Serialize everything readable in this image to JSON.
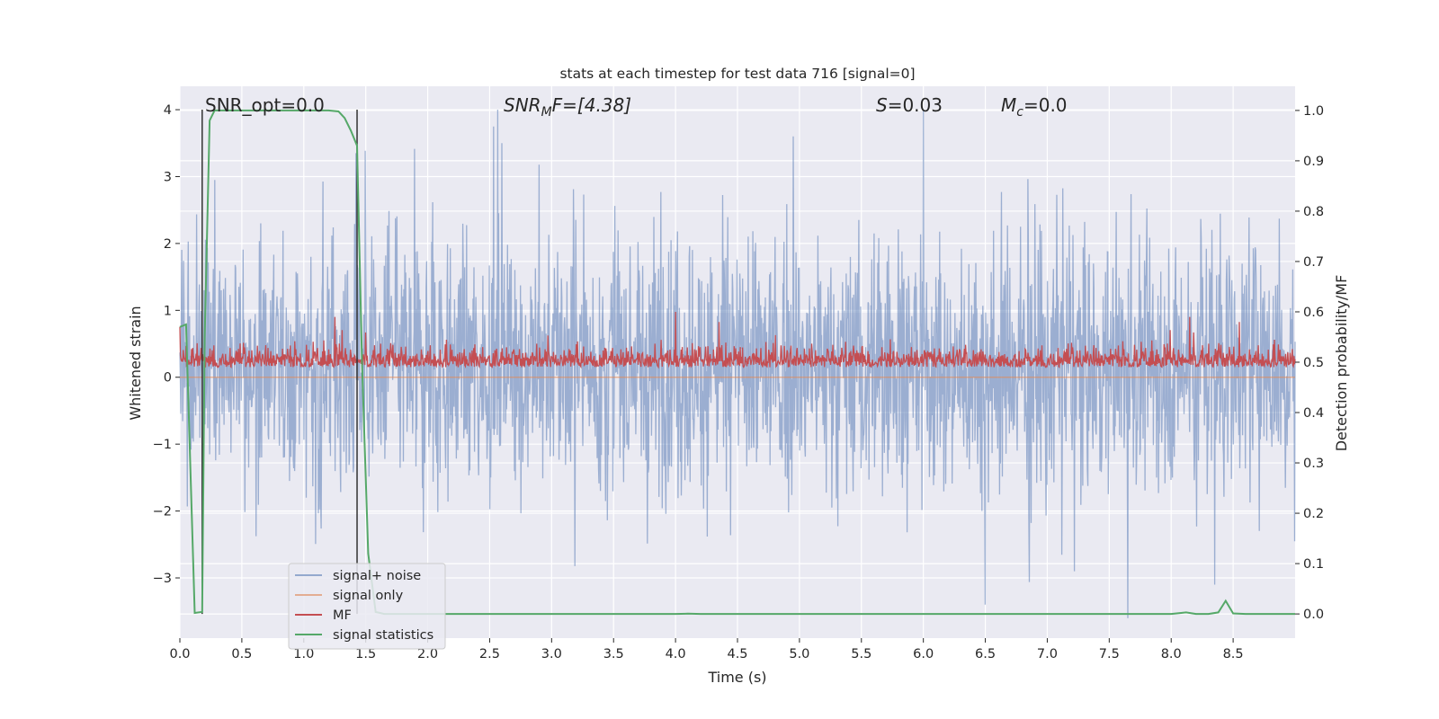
{
  "chart_data": {
    "type": "line",
    "title": "stats at each timestep for test data 716 [signal=0]",
    "xlabel": "Time (s)",
    "ylabel_left": "Whitened strain",
    "ylabel_right": "Detection probability/MF",
    "xlim": [
      0.0,
      9.0
    ],
    "ylim_left": [
      -3.9,
      4.35
    ],
    "ylim_right": [
      -0.048,
      1.048
    ],
    "x_ticks": [
      "0.0",
      "0.5",
      "1.0",
      "1.5",
      "2.0",
      "2.5",
      "3.0",
      "3.5",
      "4.0",
      "4.5",
      "5.0",
      "5.5",
      "6.0",
      "6.5",
      "7.0",
      "7.5",
      "8.0",
      "8.5"
    ],
    "y_left_ticks": [
      "−3",
      "−2",
      "−1",
      "0",
      "1",
      "2",
      "3",
      "4"
    ],
    "y_right_ticks": [
      "0.0",
      "0.1",
      "0.2",
      "0.3",
      "0.4",
      "0.5",
      "0.6",
      "0.7",
      "0.8",
      "0.9",
      "1.0"
    ],
    "grid": true,
    "legend_position": "lower-left",
    "annotations": {
      "snr_opt": "SNR_opt=0.0",
      "snr_mf_main": "SNR",
      "snr_mf_sub": "M",
      "snr_mf_rest": "F=[4.38]",
      "s_main": "S",
      "s_rest": "=0.03",
      "mc_main": "M",
      "mc_sub": "c",
      "mc_rest": "=0.0"
    },
    "vertical_markers": [
      0.18,
      1.43
    ],
    "series": [
      {
        "name": "signal+ noise",
        "axis": "left",
        "color": "#4c72b0",
        "x": [
          0.0,
          9.0
        ],
        "y_band_min": -3.6,
        "y_band_max": 4.0,
        "y_typical_range": [
          -1.3,
          1.7
        ],
        "note_values": {
          "peaks_high": [
            [
              4.95,
              3.6
            ],
            [
              6.0,
              4.0
            ],
            [
              1.42,
              3.35
            ]
          ],
          "peaks_low": [
            [
              7.65,
              -3.6
            ],
            [
              6.5,
              -3.4
            ],
            [
              8.35,
              -3.1
            ]
          ]
        }
      },
      {
        "name": "signal only",
        "axis": "left",
        "color": "#dd8452",
        "x": [
          0.0,
          9.0
        ],
        "y": [
          0.0,
          0.0
        ]
      },
      {
        "name": "MF",
        "axis": "right",
        "color": "#c44e52",
        "baseline": 0.49,
        "typical_range": [
          0.49,
          0.56
        ],
        "peaks": [
          [
            0.0,
            0.57
          ],
          [
            1.25,
            0.59
          ],
          [
            4.0,
            0.6
          ],
          [
            4.35,
            0.58
          ],
          [
            8.15,
            0.59
          ],
          [
            8.55,
            0.58
          ]
        ]
      },
      {
        "name": "signal statistics",
        "axis": "right",
        "color": "#55a868",
        "x": [
          0.0,
          0.05,
          0.12,
          0.18,
          0.2,
          0.24,
          0.28,
          0.4,
          0.8,
          1.2,
          1.28,
          1.33,
          1.38,
          1.43,
          1.47,
          1.52,
          1.58,
          1.65,
          2.5,
          4.0,
          4.1,
          4.2,
          5.0,
          6.0,
          7.0,
          8.0,
          8.08,
          8.12,
          8.2,
          8.3,
          8.38,
          8.44,
          8.5,
          8.6,
          9.0
        ],
        "y": [
          0.57,
          0.575,
          0.002,
          0.004,
          0.55,
          0.98,
          1.0,
          1.0,
          1.0,
          1.0,
          0.998,
          0.985,
          0.96,
          0.93,
          0.5,
          0.12,
          0.004,
          0.0,
          0.0,
          0.0,
          0.0005,
          0.0,
          0.0,
          0.0,
          0.0,
          0.0,
          0.002,
          0.003,
          0.0,
          0.0,
          0.003,
          0.026,
          0.001,
          0.0,
          0.0
        ]
      }
    ]
  }
}
